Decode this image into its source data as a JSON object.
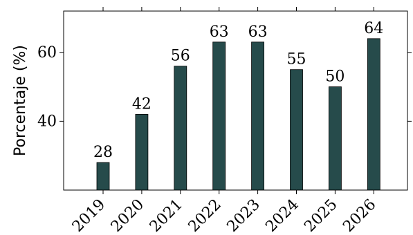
{
  "chart_data": {
    "type": "bar",
    "categories": [
      "2019",
      "2020",
      "2021",
      "2022",
      "2023",
      "2024",
      "2025",
      "2026"
    ],
    "values": [
      28,
      42,
      56,
      63,
      63,
      55,
      50,
      64
    ],
    "title": "",
    "xlabel": "",
    "ylabel": "Porcentaje (%)",
    "ylim": [
      20,
      72
    ],
    "yticks": [
      40,
      60
    ],
    "grid": false,
    "bar_color": "#264b4b"
  }
}
